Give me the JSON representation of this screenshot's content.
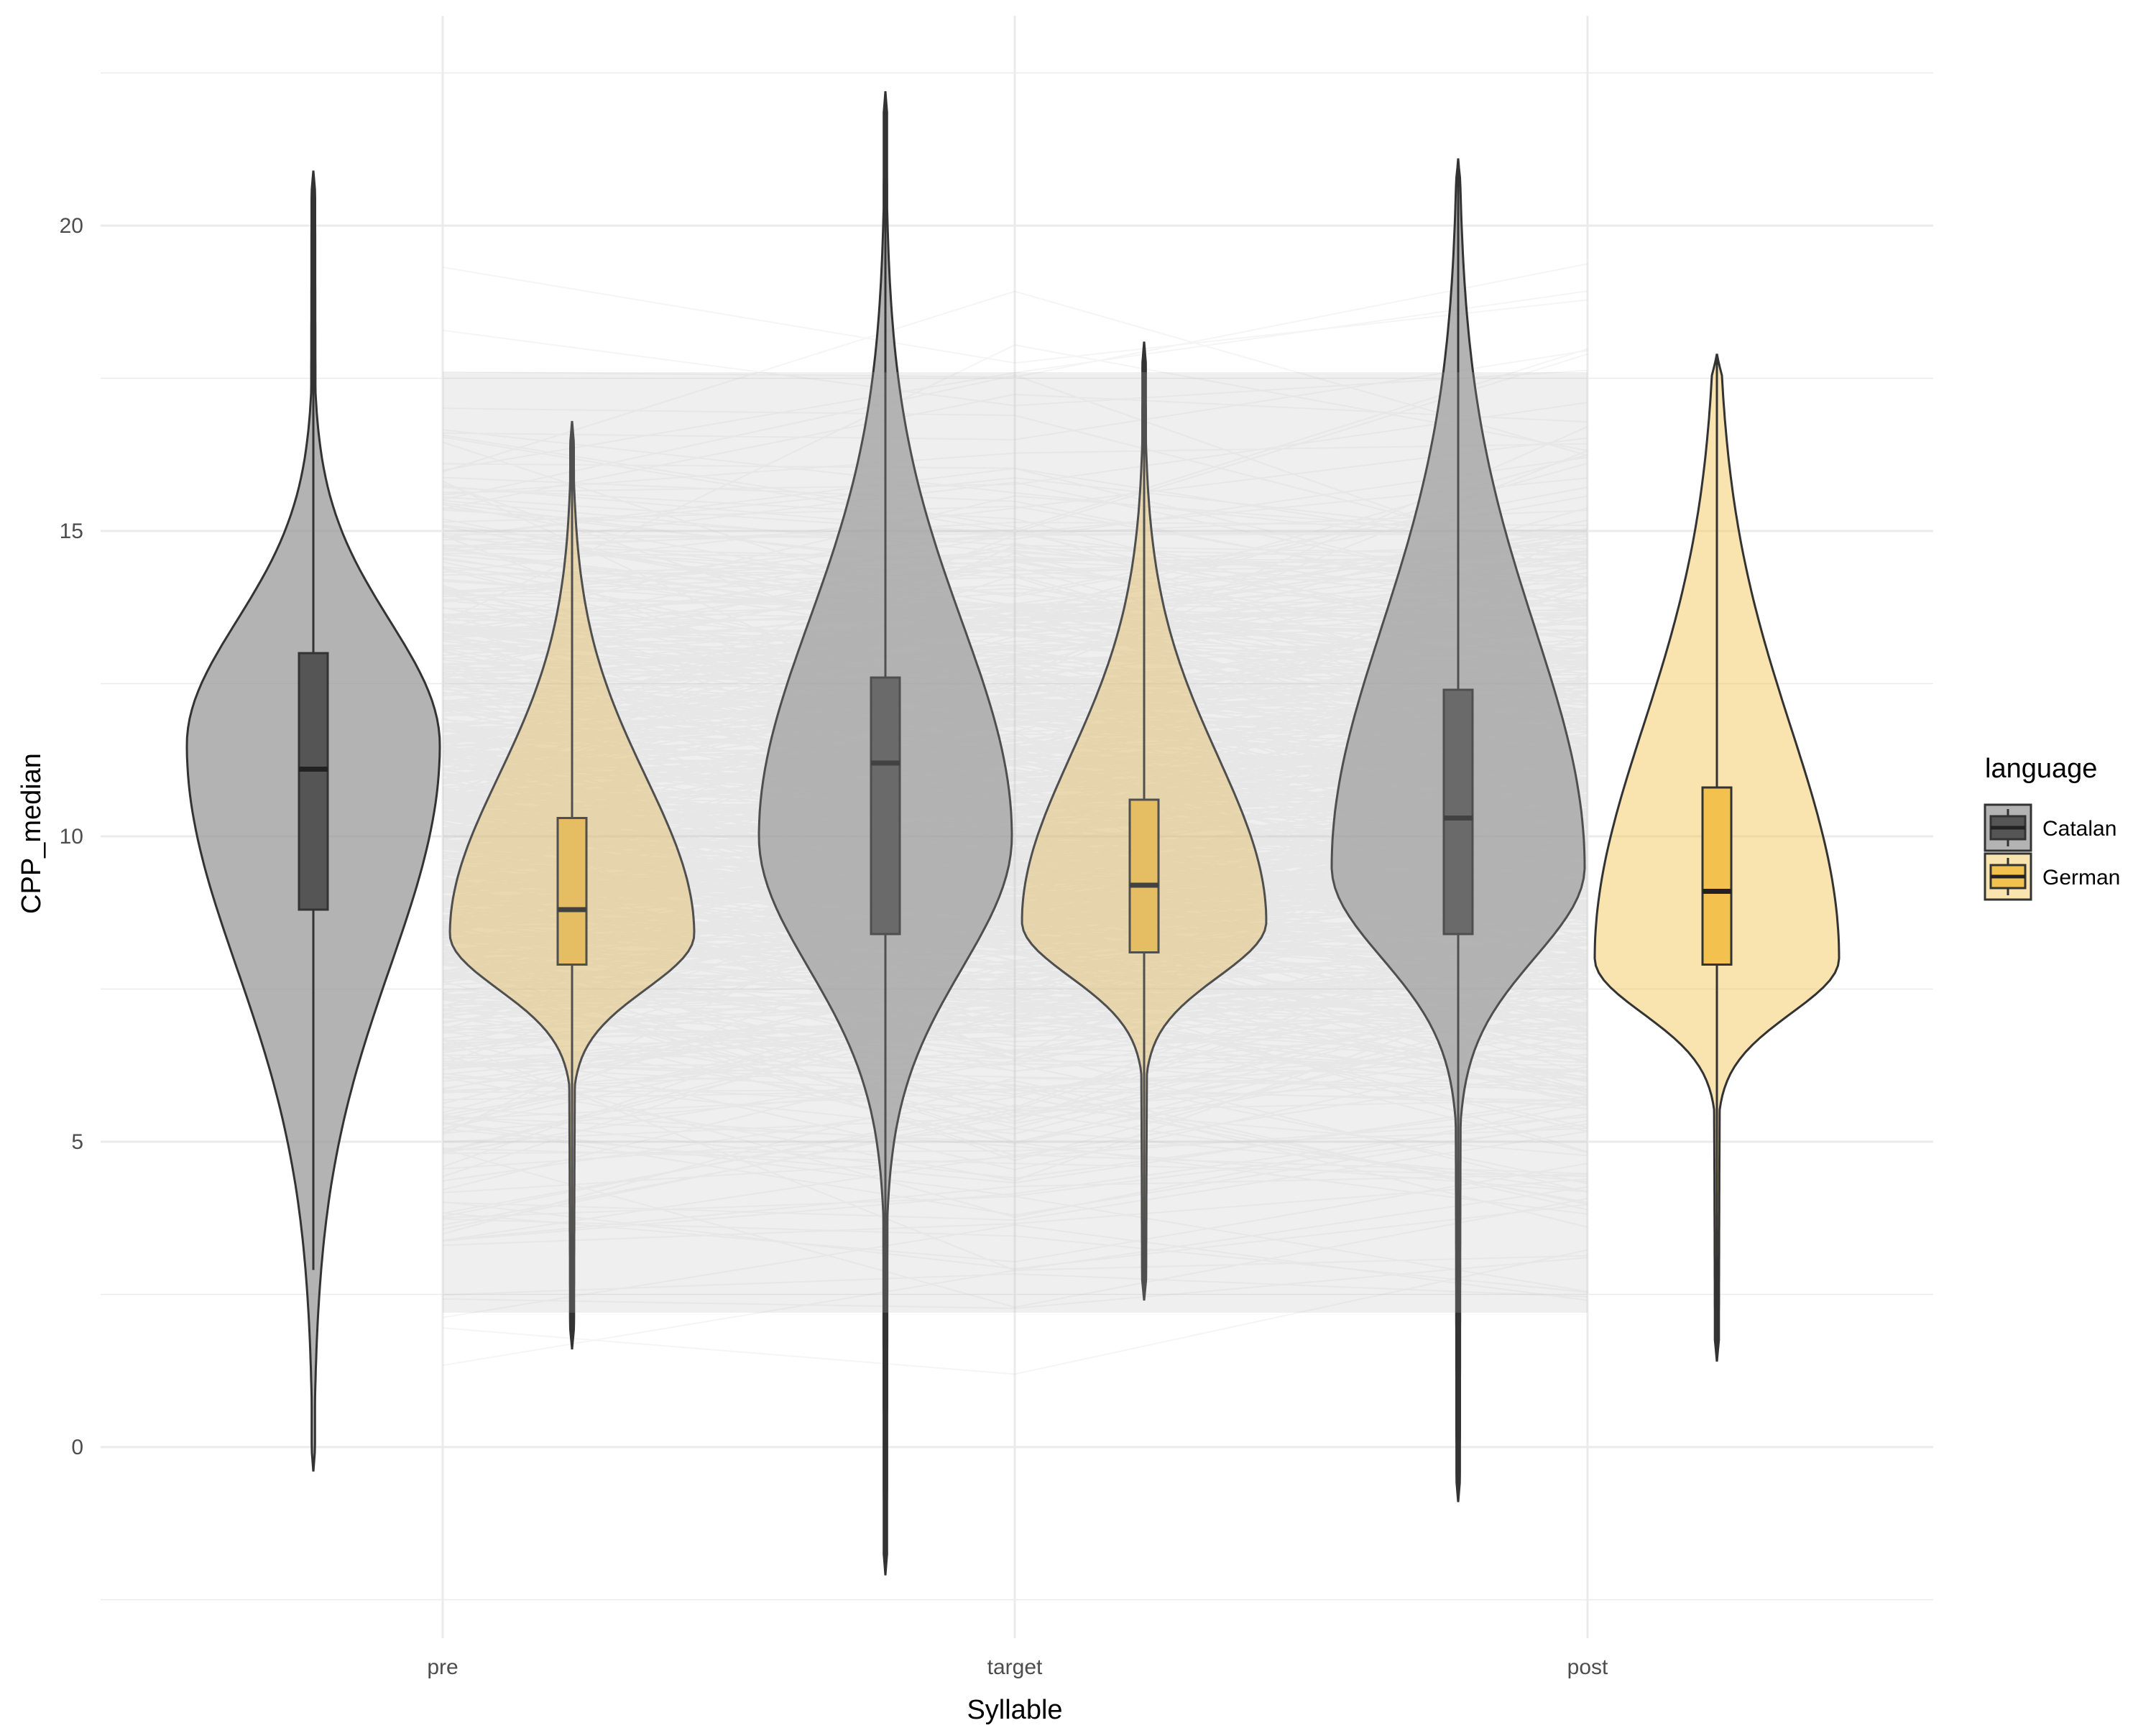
{
  "chart_data": {
    "type": "violin",
    "xlabel": "Syllable",
    "ylabel": "CPP_median",
    "categories": [
      "pre",
      "target",
      "post"
    ],
    "y_ticks": [
      0,
      5,
      10,
      15,
      20
    ],
    "ylim": [
      -2.5,
      23.5
    ],
    "grid": true,
    "legend": {
      "title": "language",
      "position": "right",
      "entries": [
        {
          "label": "Catalan",
          "fill": "#999999",
          "box_fill": "#555555"
        },
        {
          "label": "German",
          "fill": "#f2c14e",
          "box_fill": "#f2c14e"
        }
      ]
    },
    "series": [
      {
        "name": "Catalan",
        "color": "#999999",
        "violins": [
          {
            "category": "pre",
            "min": -0.4,
            "max": 20.9,
            "q1": 8.8,
            "median": 11.1,
            "q3": 13.0,
            "whisker_low": 2.9,
            "whisker_high": 20.9,
            "mode": 11.5
          },
          {
            "category": "target",
            "min": -2.1,
            "max": 22.2,
            "q1": 8.4,
            "median": 11.2,
            "q3": 12.6,
            "whisker_low": -2.1,
            "whisker_high": 22.2,
            "mode": 10.0
          },
          {
            "category": "post",
            "min": -0.9,
            "max": 21.1,
            "q1": 8.4,
            "median": 10.3,
            "q3": 12.4,
            "whisker_low": -0.9,
            "whisker_high": 21.1,
            "mode": 9.5
          }
        ]
      },
      {
        "name": "German",
        "color": "#f2c14e",
        "violins": [
          {
            "category": "pre",
            "min": 1.6,
            "max": 16.8,
            "q1": 7.9,
            "median": 8.8,
            "q3": 10.3,
            "whisker_low": 1.6,
            "whisker_high": 16.8,
            "mode": 8.4
          },
          {
            "category": "target",
            "min": 2.4,
            "max": 18.1,
            "q1": 8.1,
            "median": 9.2,
            "q3": 10.6,
            "whisker_low": 2.4,
            "whisker_high": 18.1,
            "mode": 8.6
          },
          {
            "category": "post",
            "min": 1.4,
            "max": 17.9,
            "q1": 7.9,
            "median": 9.1,
            "q3": 10.8,
            "whisker_low": 1.4,
            "whisker_high": 17.9,
            "mode": 8.0
          }
        ]
      }
    ]
  }
}
